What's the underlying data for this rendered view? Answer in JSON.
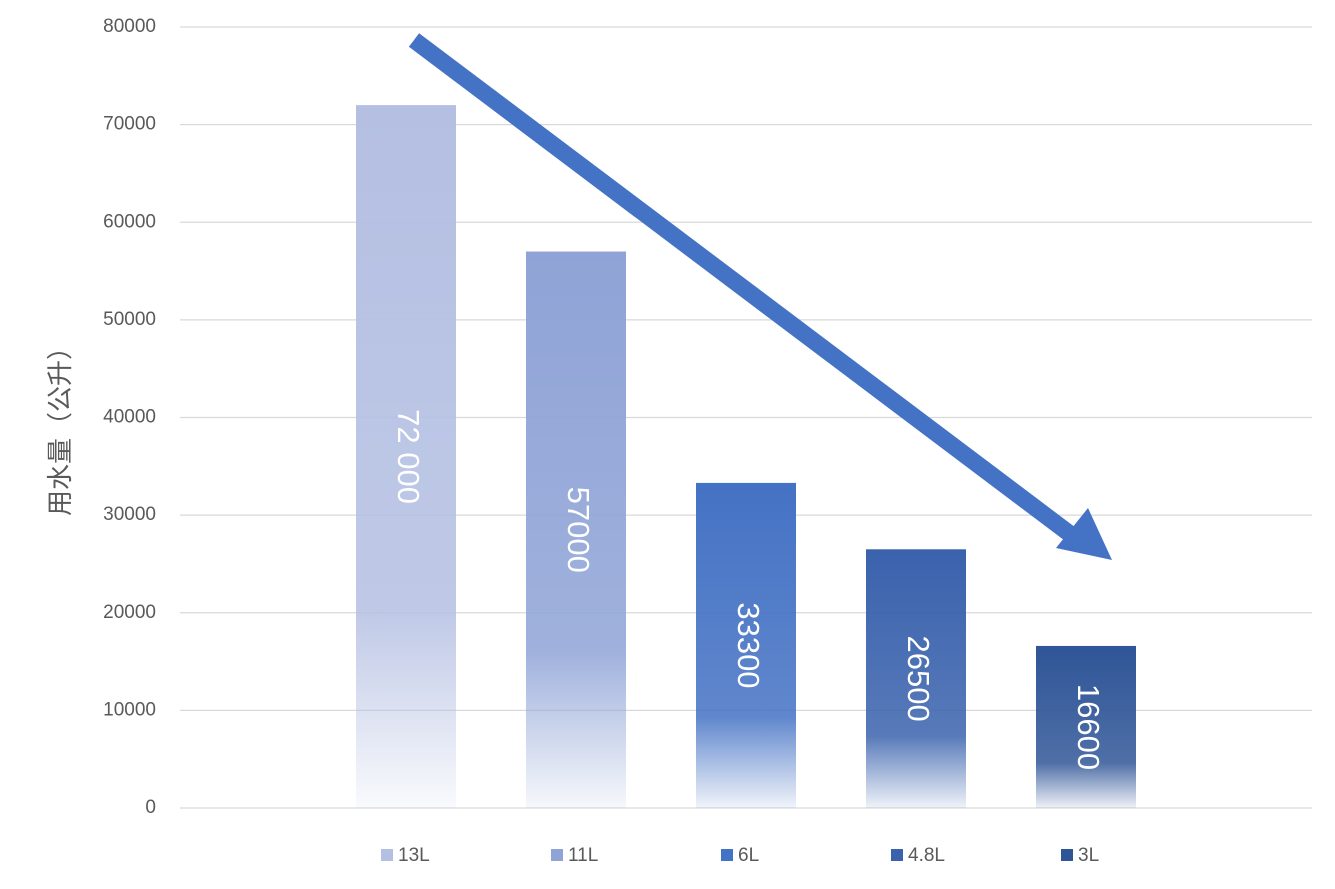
{
  "chart_data": {
    "type": "bar",
    "y_label": "用水量（公升）",
    "categories": [
      null
    ],
    "series": [
      {
        "name": "13L",
        "color": "#b4bfe2",
        "values": [
          72000
        ],
        "value_labels": [
          "72 000"
        ]
      },
      {
        "name": "11L",
        "color": "#8fa3d6",
        "values": [
          57000
        ]
      },
      {
        "name": "6L",
        "color": "#4472c4",
        "values": [
          33300
        ]
      },
      {
        "name": "4.8L",
        "color": "#3a62ad",
        "values": [
          26500
        ]
      },
      {
        "name": "3L",
        "color": "#2f5597",
        "values": [
          16600
        ]
      }
    ],
    "ylim": [
      0,
      80000
    ],
    "yticks": [
      0,
      10000,
      20000,
      30000,
      40000,
      50000,
      60000,
      70000,
      80000
    ],
    "grid": true,
    "legend": "bottom"
  }
}
